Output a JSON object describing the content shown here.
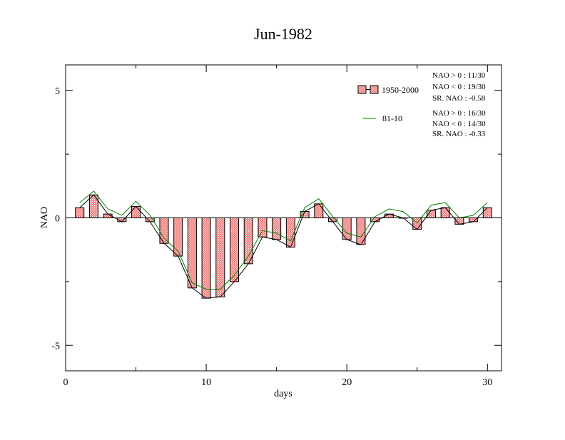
{
  "chart_data": {
    "type": "bar",
    "title": "Jun-1982",
    "xlabel": "days",
    "ylabel": "NAO",
    "xlim": [
      0,
      31
    ],
    "ylim": [
      -6,
      6
    ],
    "x_ticks": [
      0,
      10,
      20,
      30
    ],
    "y_ticks": [
      5,
      0,
      -5
    ],
    "x_tick_labels": [
      "0",
      "10",
      "20",
      "30"
    ],
    "y_tick_labels": [
      "5",
      "0",
      "-5"
    ],
    "grid": false,
    "legend_position": "top-right",
    "x": [
      1,
      2,
      3,
      4,
      5,
      6,
      7,
      8,
      9,
      10,
      11,
      12,
      13,
      14,
      15,
      16,
      17,
      18,
      19,
      20,
      21,
      22,
      23,
      24,
      25,
      26,
      27,
      28,
      29,
      30
    ],
    "series": [
      {
        "name": "1950-2000",
        "kind": "bar",
        "color": "#f08080",
        "values": [
          0.4,
          0.9,
          0.15,
          -0.15,
          0.45,
          -0.15,
          -1.0,
          -1.5,
          -2.75,
          -3.15,
          -3.1,
          -2.5,
          -1.8,
          -0.75,
          -0.85,
          -1.15,
          0.25,
          0.55,
          -0.15,
          -0.85,
          -1.05,
          -0.15,
          0.15,
          0.0,
          -0.45,
          0.3,
          0.4,
          -0.25,
          -0.15,
          0.4
        ]
      },
      {
        "name": "81-10",
        "kind": "line",
        "color": "#008000",
        "values": [
          0.6,
          1.05,
          0.35,
          0.1,
          0.65,
          0.1,
          -0.8,
          -1.3,
          -2.55,
          -2.8,
          -2.8,
          -2.25,
          -1.5,
          -0.5,
          -0.6,
          -0.9,
          0.4,
          0.75,
          0.05,
          -0.6,
          -0.75,
          0.05,
          0.35,
          0.25,
          -0.2,
          0.5,
          0.6,
          0.0,
          0.1,
          0.6
        ]
      }
    ],
    "unnamed_line": {
      "color": "#000000",
      "values": [
        0.4,
        0.9,
        0.15,
        -0.15,
        0.45,
        -0.15,
        -1.0,
        -1.5,
        -2.75,
        -3.15,
        -3.1,
        -2.5,
        -1.8,
        -0.75,
        -0.85,
        -1.15,
        0.25,
        0.55,
        -0.15,
        -0.85,
        -1.05,
        -0.15,
        0.15,
        0.0,
        -0.45,
        0.3,
        0.4,
        -0.25,
        -0.15,
        0.4
      ]
    },
    "annotations": {
      "stats_1950_2000": [
        "NAO > 0 : 11/30",
        "NAO < 0 : 19/30",
        "SR. NAO : -0.58"
      ],
      "stats_81_10": [
        "NAO > 0 : 16/30",
        "NAO < 0 : 14/30",
        "SR. NAO : -0.33"
      ]
    }
  }
}
